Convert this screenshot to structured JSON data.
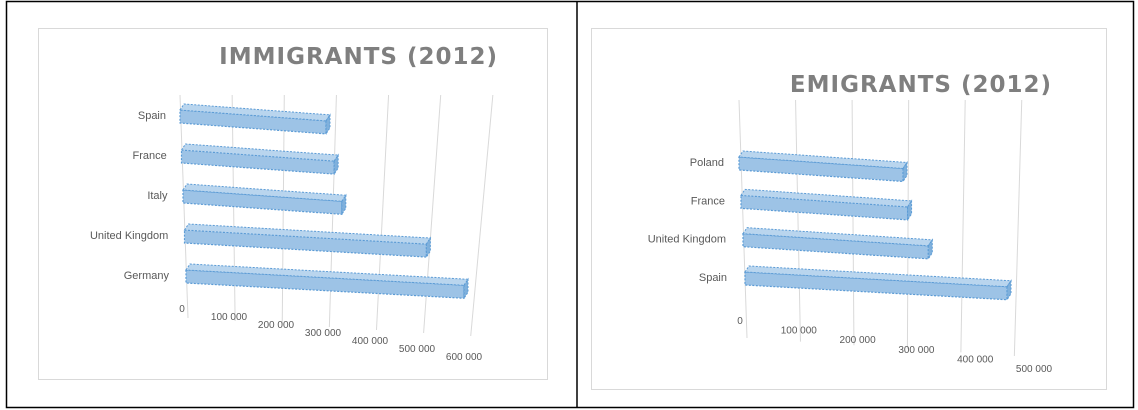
{
  "chart_data": [
    {
      "id": "immigrants",
      "type": "bar",
      "orientation": "horizontal",
      "style": "3d",
      "title": "IMMIGRANTS (2012)",
      "categories": [
        "Spain",
        "France",
        "Italy",
        "United Kingdom",
        "Germany"
      ],
      "values": [
        280000,
        300000,
        320000,
        500000,
        590000
      ],
      "xlim": [
        0,
        600000
      ],
      "ticks": [
        "0",
        "100 000",
        "200 000",
        "300 000",
        "400 000",
        "500 000",
        "600 000"
      ],
      "color": "#9dc3e6",
      "grid": true,
      "legend": "none"
    },
    {
      "id": "emigrants",
      "type": "bar",
      "orientation": "horizontal",
      "style": "3d",
      "title": "EMIGRANTS (2012)",
      "categories": [
        "Poland",
        "France",
        "United Kingdom",
        "Spain"
      ],
      "values": [
        290000,
        300000,
        340000,
        490000
      ],
      "xlim": [
        0,
        500000
      ],
      "ticks": [
        "0",
        "100 000",
        "200 000",
        "300 000",
        "400 000",
        "500 000"
      ],
      "color": "#9dc3e6",
      "grid": true,
      "legend": "none"
    }
  ]
}
